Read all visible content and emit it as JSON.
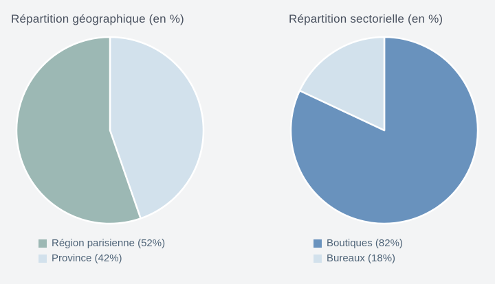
{
  "background_color": "#f3f4f5",
  "title_color": "#48505e",
  "legend_text_color": "#4f6478",
  "slice_border_color": "#ffffff",
  "chart_data": [
    {
      "type": "pie",
      "title": "Répartition géographique (en %)",
      "legend_position": "bottom",
      "slices": [
        {
          "name": "Région parisienne",
          "value": 52,
          "color": "#9cb8b4",
          "label": "Région parisienne (52%)"
        },
        {
          "name": "Province",
          "value": 42,
          "color": "#d2e1ec",
          "label": "Province (42%)"
        }
      ],
      "clockwise_draw_order": [
        1,
        0
      ]
    },
    {
      "type": "pie",
      "title": "Répartition sectorielle (en %)",
      "legend_position": "bottom",
      "slices": [
        {
          "name": "Boutiques",
          "value": 82,
          "color": "#6992bd",
          "label": "Boutiques (82%)"
        },
        {
          "name": "Bureaux",
          "value": 18,
          "color": "#d2e1ec",
          "label": "Bureaux (18%)"
        }
      ],
      "clockwise_draw_order": [
        0,
        1
      ]
    }
  ]
}
